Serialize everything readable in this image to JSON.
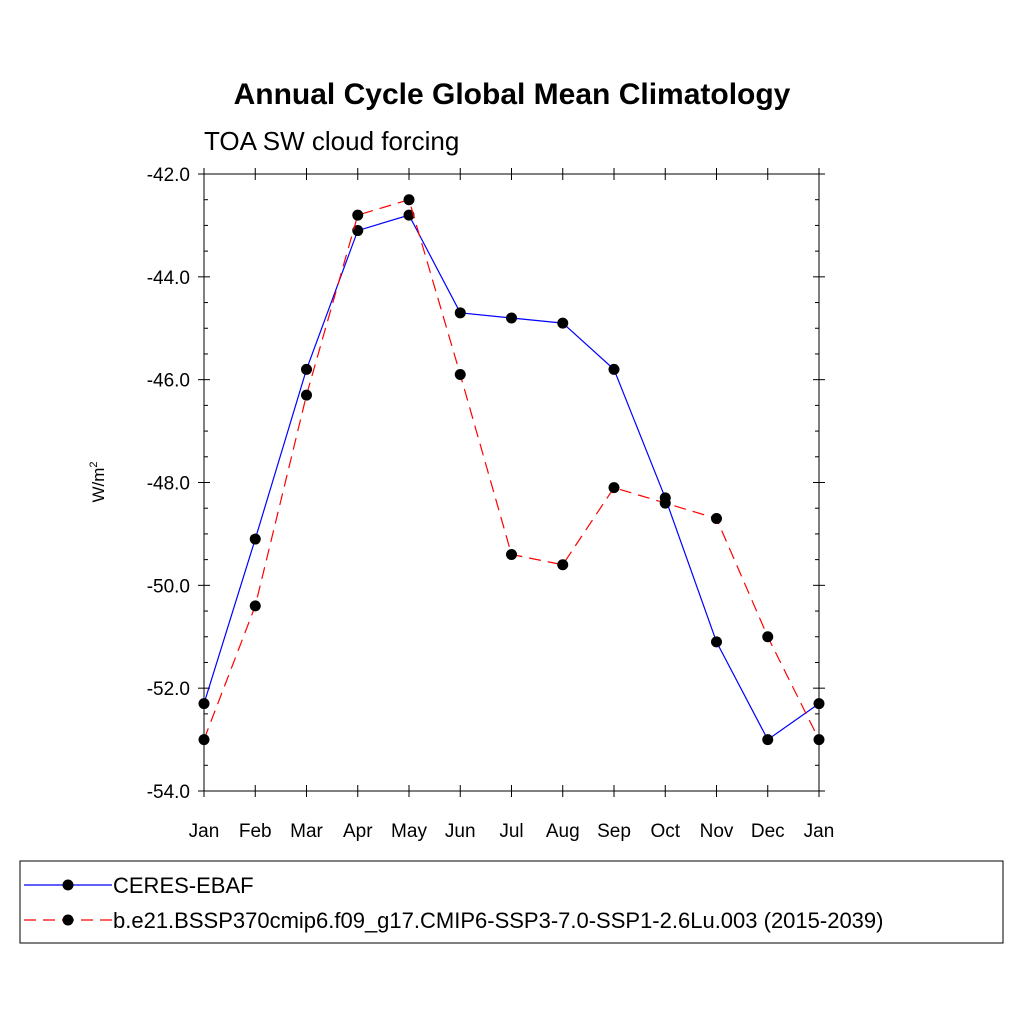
{
  "chart_data": {
    "type": "line",
    "title": "Annual Cycle Global Mean Climatology",
    "subtitle": "TOA SW cloud forcing",
    "ylabel_base": "W/m",
    "ylabel_exp": "2",
    "xlabel": "",
    "categories": [
      "Jan",
      "Feb",
      "Mar",
      "Apr",
      "May",
      "Jun",
      "Jul",
      "Aug",
      "Sep",
      "Oct",
      "Nov",
      "Dec",
      "Jan"
    ],
    "ylim": [
      -54.0,
      -42.0
    ],
    "yticks": [
      -54.0,
      -52.0,
      -50.0,
      -48.0,
      -46.0,
      -44.0,
      -42.0
    ],
    "ytick_labels": [
      "-54.0",
      "-52.0",
      "-50.0",
      "-48.0",
      "-46.0",
      "-44.0",
      "-42.0"
    ],
    "grid": false,
    "legend_position": "bottom",
    "series": [
      {
        "name": "CERES-EBAF",
        "color": "#0000ff",
        "dash": "solid",
        "values": [
          -52.3,
          -49.1,
          -45.8,
          -43.1,
          -42.8,
          -44.7,
          -44.8,
          -44.9,
          -45.8,
          -48.3,
          -51.1,
          -53.0,
          -52.3
        ]
      },
      {
        "name": "b.e21.BSSP370cmip6.f09_g17.CMIP6-SSP3-7.0-SSP1-2.6Lu.003 (2015-2039)",
        "color": "#ff0000",
        "dash": "dashed",
        "values": [
          -53.0,
          -50.4,
          -46.3,
          -42.8,
          -42.5,
          -45.9,
          -49.4,
          -49.6,
          -48.1,
          -48.4,
          -48.7,
          -51.0,
          -53.0
        ]
      }
    ]
  }
}
